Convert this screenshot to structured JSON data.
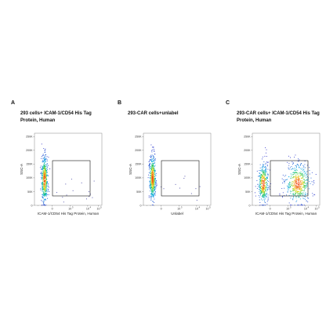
{
  "chart_data": [
    {
      "type": "scatter",
      "panel": "A",
      "title": "293 cells+ ICAM-1/CD54 His Tag Protein, Human",
      "xlabel": "ICAM-1/CD54 His Tag Protein, Human",
      "ylabel": "SSC-A",
      "x_scale": "biexponential",
      "xticks": [
        "0",
        "10",
        "10",
        "10"
      ],
      "xtick_exps": [
        "",
        "3",
        "4",
        "5"
      ],
      "yticks": [
        "0",
        "50K",
        "100K",
        "150K",
        "200K",
        "250K"
      ],
      "ylim": [
        0,
        262144
      ],
      "gate": "rectangle",
      "populations": [
        {
          "x_center": -0.45,
          "y_center": 95000,
          "count": 520,
          "spread_x": 0.09,
          "spread_y": 42000
        },
        {
          "x_center": 1.2,
          "y_center": 60000,
          "count": 14,
          "spread_x": 0.8,
          "spread_y": 40000
        }
      ]
    },
    {
      "type": "scatter",
      "panel": "B",
      "title": "293-CAR cells+unlabel",
      "xlabel": "Unlabel",
      "ylabel": "SSC-A",
      "x_scale": "biexponential",
      "xticks": [
        "0",
        "10",
        "10",
        "10"
      ],
      "xtick_exps": [
        "",
        "3",
        "4",
        "5"
      ],
      "yticks": [
        "0",
        "50K",
        "100K",
        "150K",
        "200K",
        "250K"
      ],
      "ylim": [
        0,
        262144
      ],
      "gate": "rectangle",
      "populations": [
        {
          "x_center": -0.5,
          "y_center": 100000,
          "count": 540,
          "spread_x": 0.09,
          "spread_y": 40000
        },
        {
          "x_center": 1.0,
          "y_center": 60000,
          "count": 10,
          "spread_x": 0.8,
          "spread_y": 35000
        }
      ]
    },
    {
      "type": "scatter",
      "panel": "C",
      "title": "293-CAR cells+ ICAM-1/CD54 His Tag Protein, Human",
      "xlabel": "ICAM-1/CD54 His Tag Protein, Human",
      "ylabel": "SSC-A",
      "x_scale": "biexponential",
      "xticks": [
        "0",
        "10",
        "10",
        "10"
      ],
      "xtick_exps": [
        "",
        "3",
        "4",
        "5"
      ],
      "yticks": [
        "0",
        "50K",
        "100K",
        "150K",
        "200K",
        "250K"
      ],
      "ylim": [
        0,
        262144
      ],
      "gate": "rectangle",
      "populations": [
        {
          "x_center": -0.4,
          "y_center": 80000,
          "count": 420,
          "spread_x": 0.14,
          "spread_y": 35000
        },
        {
          "x_center": 1.55,
          "y_center": 80000,
          "count": 520,
          "spread_x": 0.35,
          "spread_y": 35000
        }
      ]
    }
  ]
}
